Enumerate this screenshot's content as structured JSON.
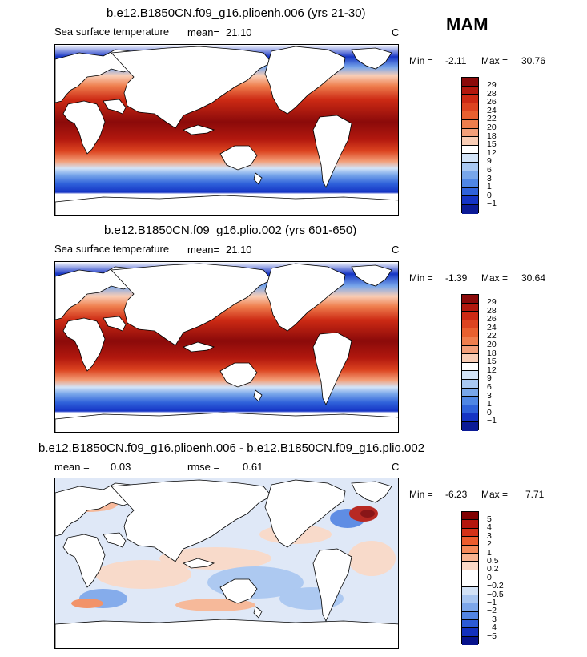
{
  "season": "MAM",
  "panels": [
    {
      "title": "b.e12.B1850CN.f09_g16.plioenh.006 (yrs 21-30)",
      "variable": "Sea surface temperature",
      "mean_label": "mean=",
      "mean_value": "21.10",
      "rmse_label": "",
      "rmse_value": "",
      "units": "C",
      "min_label": "Min =",
      "min_value": "-2.11",
      "max_label": "Max =",
      "max_value": "30.76",
      "colorbar_labels": [
        "29",
        "28",
        "26",
        "24",
        "22",
        "20",
        "18",
        "15",
        "12",
        "9",
        "6",
        "3",
        "1",
        "0",
        "−1"
      ]
    },
    {
      "title": "b.e12.B1850CN.f09_g16.plio.002 (yrs 601-650)",
      "variable": "Sea surface temperature",
      "mean_label": "mean=",
      "mean_value": "21.10",
      "rmse_label": "",
      "rmse_value": "",
      "units": "C",
      "min_label": "Min =",
      "min_value": "-1.39",
      "max_label": "Max =",
      "max_value": "30.64",
      "colorbar_labels": [
        "29",
        "28",
        "26",
        "24",
        "22",
        "20",
        "18",
        "15",
        "12",
        "9",
        "6",
        "3",
        "1",
        "0",
        "−1"
      ]
    },
    {
      "title": "b.e12.B1850CN.f09_g16.plioenh.006 - b.e12.B1850CN.f09_g16.plio.002",
      "variable": "",
      "mean_label": "mean =",
      "mean_value": "0.03",
      "rmse_label": "rmse =",
      "rmse_value": "0.61",
      "units": "C",
      "min_label": "Min =",
      "min_value": "-6.23",
      "max_label": "Max =",
      "max_value": "7.71",
      "colorbar_labels": [
        "5",
        "4",
        "3",
        "2",
        "1",
        "0.5",
        "0.2",
        "0",
        "−0.2",
        "−0.5",
        "−1",
        "−2",
        "−3",
        "−4",
        "−5"
      ]
    }
  ],
  "colors": {
    "sst_scale": [
      "#8b0a0a",
      "#b2180e",
      "#cc2a14",
      "#dc4420",
      "#e8602f",
      "#ef7e4d",
      "#f39f79",
      "#f9cdb5",
      "#ffffff",
      "#d3e4f8",
      "#a9c8f2",
      "#78a6ea",
      "#4f86e4",
      "#2f62da",
      "#1534c4",
      "#0c1b96"
    ],
    "diff_scale": [
      "#800000",
      "#b3150d",
      "#d33117",
      "#ec5c2d",
      "#f58a5a",
      "#f9b491",
      "#fbd9c6",
      "#ffffff",
      "#ffffff",
      "#d2e2f6",
      "#a8c6f1",
      "#7ca6ea",
      "#5284e2",
      "#2c5bd6",
      "#1230bd",
      "#06128c"
    ]
  }
}
